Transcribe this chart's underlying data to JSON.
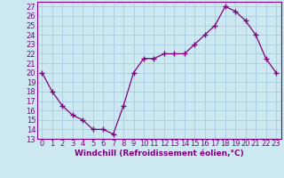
{
  "x": [
    0,
    1,
    2,
    3,
    4,
    5,
    6,
    7,
    8,
    9,
    10,
    11,
    12,
    13,
    14,
    15,
    16,
    17,
    18,
    19,
    20,
    21,
    22,
    23
  ],
  "y": [
    20,
    18,
    16.5,
    15.5,
    15,
    14,
    14,
    13.5,
    16.5,
    20,
    21.5,
    21.5,
    22,
    22,
    22,
    23,
    24,
    25,
    27,
    26.5,
    25.5,
    24,
    21.5,
    20
  ],
  "line_color": "#800080",
  "marker": "+",
  "marker_size": 4.0,
  "line_width": 0.9,
  "bg_color": "#cce8f0",
  "grid_color": "#aaccdd",
  "xlabel": "Windchill (Refroidissement éolien,°C)",
  "xlabel_fontsize": 6.5,
  "tick_fontsize": 6.0,
  "ylim": [
    13,
    27.5
  ],
  "yticks": [
    13,
    14,
    15,
    16,
    17,
    18,
    19,
    20,
    21,
    22,
    23,
    24,
    25,
    26,
    27
  ],
  "xticks": [
    0,
    1,
    2,
    3,
    4,
    5,
    6,
    7,
    8,
    9,
    10,
    11,
    12,
    13,
    14,
    15,
    16,
    17,
    18,
    19,
    20,
    21,
    22,
    23
  ],
  "xlim": [
    -0.5,
    23.5
  ]
}
